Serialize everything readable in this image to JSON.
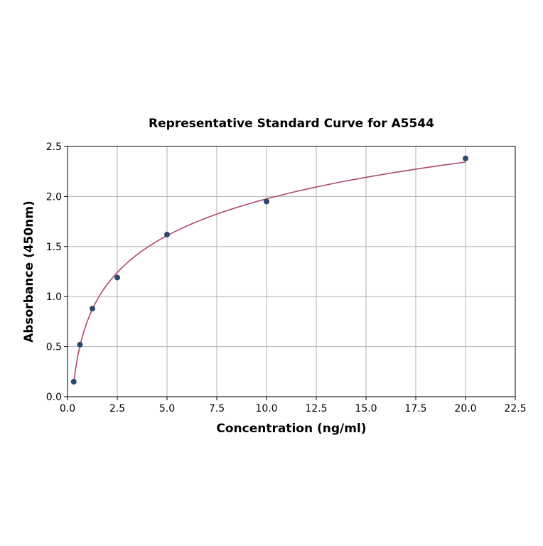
{
  "chart_data": {
    "type": "scatter",
    "title": "Representative Standard Curve for A5544",
    "xlabel": "Concentration (ng/ml)",
    "ylabel": "Absorbance (450nm)",
    "xlim": [
      0,
      22.5
    ],
    "ylim": [
      0,
      2.5
    ],
    "xticks": [
      "0.0",
      "2.5",
      "5.0",
      "7.5",
      "10.0",
      "12.5",
      "15.0",
      "17.5",
      "20.0",
      "22.5"
    ],
    "yticks": [
      "0.0",
      "0.5",
      "1.0",
      "1.5",
      "2.0",
      "2.5"
    ],
    "grid": true,
    "points": {
      "x": [
        0.3125,
        0.625,
        1.25,
        2.5,
        5,
        10,
        20
      ],
      "y": [
        0.15,
        0.52,
        0.88,
        1.19,
        1.62,
        1.95,
        2.38
      ]
    },
    "fit_curve": "smooth fitted line through standards",
    "colors": {
      "points": "#2c4a6e",
      "curve": "#b0486a",
      "grid": "#b0b0b0"
    }
  }
}
